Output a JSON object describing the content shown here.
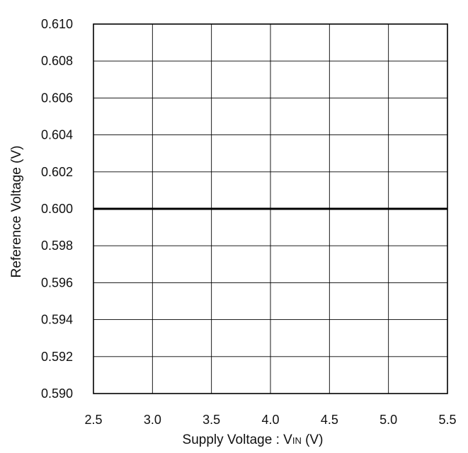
{
  "chart_data": {
    "type": "line",
    "title": "",
    "xlabel": "Supply Voltage : VIN (V)",
    "xlabel_parts": {
      "pre": "Supply Voltage : V",
      "sub": "IN",
      "post": " (V)"
    },
    "ylabel": "Reference Voltage (V)",
    "xlim": [
      2.5,
      5.5
    ],
    "ylim": [
      0.59,
      0.61
    ],
    "xticks": [
      "2.5",
      "3.0",
      "3.5",
      "4.0",
      "4.5",
      "5.0",
      "5.5"
    ],
    "yticks": [
      "0.610",
      "0.608",
      "0.606",
      "0.604",
      "0.602",
      "0.600",
      "0.598",
      "0.596",
      "0.594",
      "0.592",
      "0.590"
    ],
    "grid": true,
    "series": [
      {
        "x": [
          2.5,
          3.0,
          3.5,
          4.0,
          4.5,
          5.0,
          5.5
        ],
        "y": [
          0.6,
          0.6,
          0.6,
          0.6,
          0.6,
          0.6,
          0.6
        ],
        "color": "#000000"
      }
    ]
  }
}
